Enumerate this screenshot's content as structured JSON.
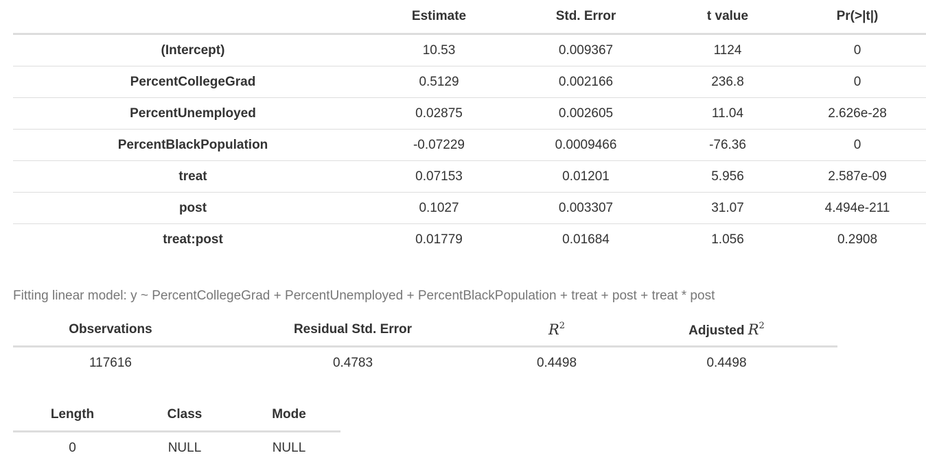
{
  "coefficients": {
    "columns": [
      "",
      "Estimate",
      "Std. Error",
      "t value",
      "Pr(>|t|)"
    ],
    "rows": [
      {
        "term": "(Intercept)",
        "estimate": "10.53",
        "std_error": "0.009367",
        "t_value": "1124",
        "p_value": "0"
      },
      {
        "term": "PercentCollegeGrad",
        "estimate": "0.5129",
        "std_error": "0.002166",
        "t_value": "236.8",
        "p_value": "0"
      },
      {
        "term": "PercentUnemployed",
        "estimate": "0.02875",
        "std_error": "0.002605",
        "t_value": "11.04",
        "p_value": "2.626e-28"
      },
      {
        "term": "PercentBlackPopulation",
        "estimate": "-0.07229",
        "std_error": "0.0009466",
        "t_value": "-76.36",
        "p_value": "0"
      },
      {
        "term": "treat",
        "estimate": "0.07153",
        "std_error": "0.01201",
        "t_value": "5.956",
        "p_value": "2.587e-09"
      },
      {
        "term": "post",
        "estimate": "0.1027",
        "std_error": "0.003307",
        "t_value": "31.07",
        "p_value": "4.494e-211"
      },
      {
        "term": "treat:post",
        "estimate": "0.01779",
        "std_error": "0.01684",
        "t_value": "1.056",
        "p_value": "0.2908"
      }
    ]
  },
  "model_caption": "Fitting linear model: y ~ PercentCollegeGrad + PercentUnemployed + PercentBlackPopulation + treat + post + treat * post",
  "fit_stats": {
    "observations_label": "Observations",
    "residual_label": "Residual Std. Error",
    "r2_symbol": "R",
    "r2_exponent": "2",
    "adjusted_label": "Adjusted",
    "values": {
      "observations": "117616",
      "residual_std_error": "0.4783",
      "r_squared": "0.4498",
      "adjusted_r_squared": "0.4498"
    }
  },
  "summary": {
    "columns": [
      "Length",
      "Class",
      "Mode"
    ],
    "values": [
      "0",
      "NULL",
      "NULL"
    ]
  }
}
